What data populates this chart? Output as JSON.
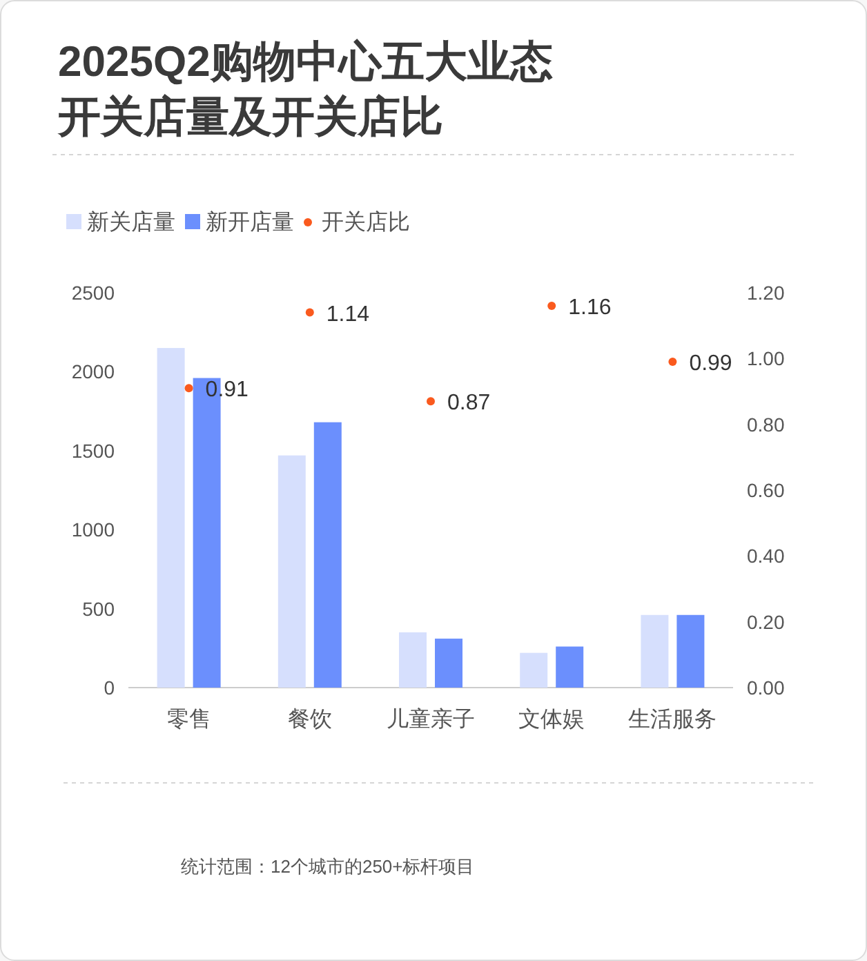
{
  "chart_data": {
    "type": "bar",
    "title": "2025Q2购物中心五大业态开关店量及开关店比",
    "categories": [
      "零售",
      "餐饮",
      "儿童亲子",
      "文体娱",
      "生活服务"
    ],
    "series": [
      {
        "name": "新关店量",
        "type": "bar",
        "color": "#d6dffd",
        "values": [
          2150,
          1470,
          350,
          220,
          460
        ]
      },
      {
        "name": "新开店量",
        "type": "bar",
        "color": "#6b8ffd",
        "values": [
          1960,
          1680,
          310,
          260,
          460
        ]
      },
      {
        "name": "开关店比",
        "type": "scatter",
        "axis": "y2",
        "color": "#fa5a1e",
        "marker": "circle",
        "data_labels": true,
        "values": [
          0.91,
          1.14,
          0.87,
          1.16,
          0.99
        ]
      }
    ],
    "ylim": [
      0,
      2500
    ],
    "yticks": [
      0,
      500,
      1000,
      1500,
      2000,
      2500
    ],
    "y2lim": [
      0,
      1.2
    ],
    "y2ticks": [
      {
        "value": 0,
        "label": "0.00"
      },
      {
        "value": 0.2,
        "label": "0.20"
      },
      {
        "value": 0.4,
        "label": "0.40"
      },
      {
        "value": 0.6,
        "label": "0.60"
      },
      {
        "value": 0.8,
        "label": "0.80"
      },
      {
        "value": 1,
        "label": "1.00"
      },
      {
        "value": 1.2,
        "label": "1.20"
      }
    ],
    "legend": "top left",
    "annotations": [
      "统计范围：12个城市的250+标杆项目"
    ]
  }
}
